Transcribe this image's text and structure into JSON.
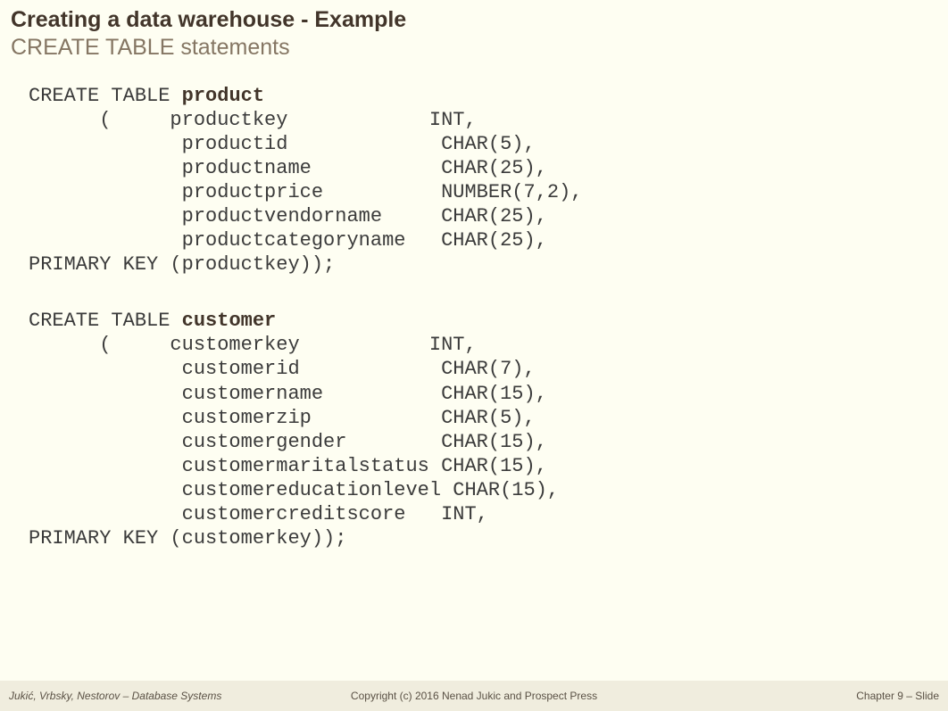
{
  "header": {
    "title": "Creating a data warehouse - Example",
    "subtitle": "CREATE TABLE statements"
  },
  "tables": {
    "product": {
      "create": "CREATE TABLE ",
      "name": "product",
      "open": "      (     ",
      "cols": [
        {
          "name": "productkey",
          "type": "INT,"
        },
        {
          "name": "productid",
          "type": "CHAR(5),"
        },
        {
          "name": "productname",
          "type": "CHAR(25),"
        },
        {
          "name": "productprice",
          "type": "NUMBER(7,2),"
        },
        {
          "name": "productvendorname",
          "type": "CHAR(25),"
        },
        {
          "name": "productcategoryname",
          "type": "CHAR(25),"
        }
      ],
      "pk": "PRIMARY KEY (productkey));"
    },
    "customer": {
      "create": "CREATE TABLE ",
      "name": "customer",
      "open": "      (     ",
      "cols": [
        {
          "name": "customerkey",
          "type": "INT,"
        },
        {
          "name": "customerid",
          "type": "CHAR(7),"
        },
        {
          "name": "customername",
          "type": "CHAR(15),"
        },
        {
          "name": "customerzip",
          "type": "CHAR(5),"
        },
        {
          "name": "customergender",
          "type": "CHAR(15),"
        },
        {
          "name": "customermaritalstatus",
          "type": "CHAR(15),"
        },
        {
          "name": "customereducationlevel",
          "type": "CHAR(15),"
        },
        {
          "name": "customercreditscore",
          "type": "INT,"
        }
      ],
      "pk": "PRIMARY KEY (customerkey));"
    }
  },
  "footer": {
    "left": "Jukić, Vrbsky, Nestorov – Database Systems",
    "center": "Copyright (c) 2016 Nenad Jukic and Prospect Press",
    "right": "Chapter 9 – Slide"
  },
  "layout": {
    "indent_col": "             ",
    "col_name_width": 22,
    "type_col_start": 23
  },
  "colors": {
    "background": "#fefef2",
    "title": "#42352a",
    "subtitle": "#857663",
    "code": "#3b3b3b",
    "footer_bg": "#f0edde",
    "footer_text": "#5a5145"
  },
  "typography": {
    "title_fontsize": 25,
    "subtitle_fontsize": 25,
    "code_fontsize": 22,
    "footer_fontsize": 12,
    "code_font": "Courier New",
    "body_font": "Verdana"
  }
}
